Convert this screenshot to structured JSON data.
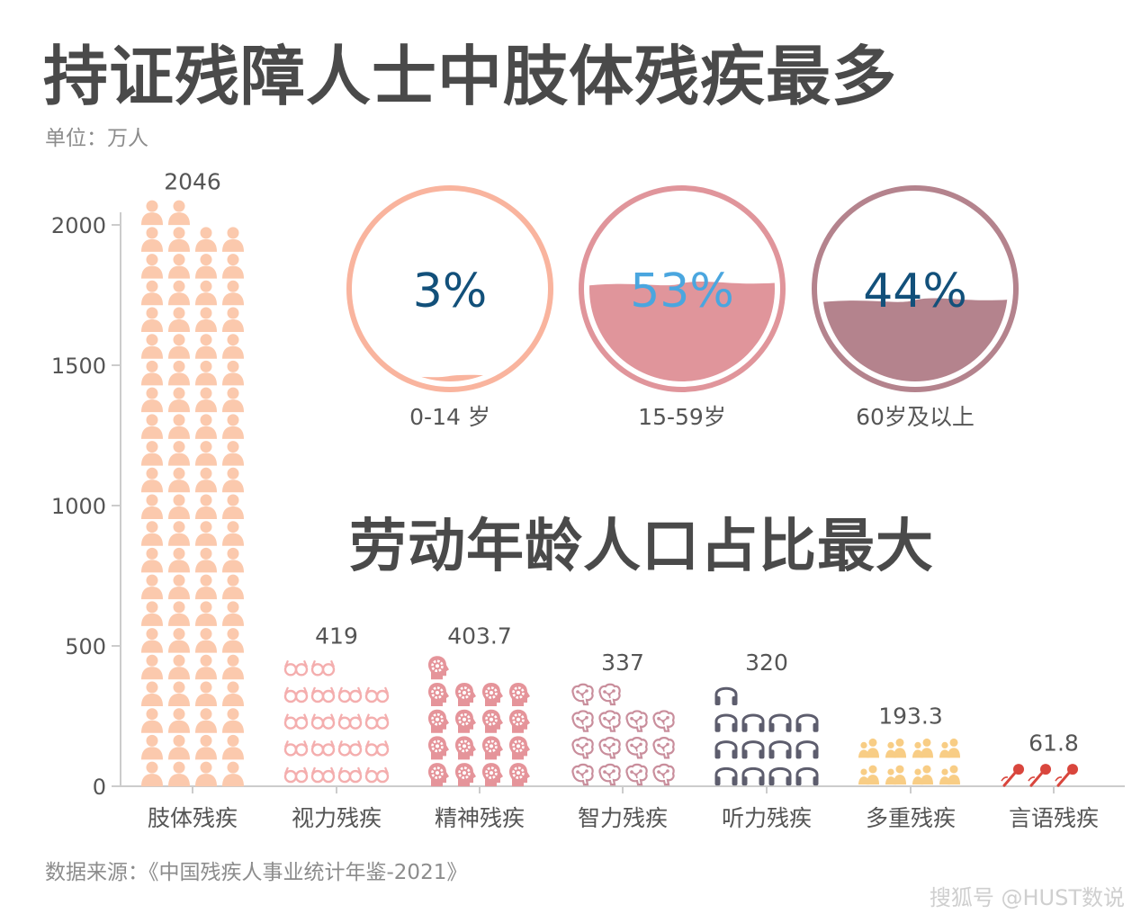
{
  "title": "持证残障人士中肢体残疾最多",
  "unit_label": "单位：万人",
  "subtitle": "劳动年龄人口占比最大",
  "source": "数据来源：《中国残疾人事业统计年鉴-2021》",
  "watermark": "搜狐号 @HUST数说",
  "chart_data": [
    {
      "type": "bar",
      "categories": [
        "肢体残疾",
        "视力残疾",
        "精神残疾",
        "智力残疾",
        "听力残疾",
        "多重残疾",
        "言语残疾"
      ],
      "values": [
        2046,
        419,
        403.7,
        337,
        320,
        193.3,
        61.8
      ],
      "data_labels": [
        "2046",
        "419",
        "403.7",
        "337",
        "320",
        "193.3",
        "61.8"
      ],
      "yticks": [
        "0",
        "500",
        "1000",
        "1500",
        "2000"
      ],
      "ylim": [
        0,
        2000
      ],
      "icons": [
        "person-icon",
        "glasses-icon",
        "head-gear-icon",
        "brain-icon",
        "headphones-icon",
        "people-group-icon",
        "microphone-icon"
      ],
      "colors": [
        "#fbc9ad",
        "#f4aeae",
        "#e5949a",
        "#c98e9c",
        "#5d5d6d",
        "#f8cd85",
        "#d9463d"
      ],
      "grid": false,
      "legend": "none"
    },
    {
      "type": "pie",
      "categories": [
        "0-14 岁",
        "15-59岁",
        "60岁及以上"
      ],
      "values": [
        3,
        53,
        44
      ],
      "labels": [
        "3%",
        "53%",
        "44%"
      ],
      "colors": [
        "#f9b49e",
        "#e0959b",
        "#b4838d"
      ]
    }
  ]
}
